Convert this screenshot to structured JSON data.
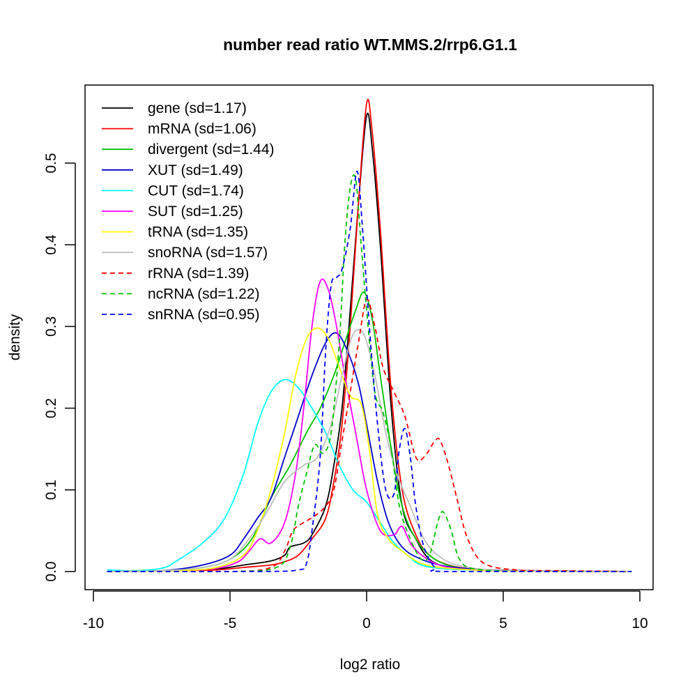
{
  "chart_data": {
    "type": "line",
    "title": "number read ratio WT.MMS.2/rrp6.G1.1",
    "xlabel": "log2 ratio",
    "ylabel": "density",
    "xlim": [
      -10,
      10
    ],
    "ylim": [
      0,
      0.57
    ],
    "x_ticks": [
      -10,
      -5,
      0,
      5,
      10
    ],
    "x_tick_labels": [
      "-10",
      "-5",
      "0",
      "5",
      "10"
    ],
    "y_ticks": [
      0.0,
      0.1,
      0.2,
      0.3,
      0.4,
      0.5
    ],
    "y_tick_labels": [
      "0.0",
      "0.1",
      "0.2",
      "0.3",
      "0.4",
      "0.5"
    ],
    "legend_position": "top-left",
    "series": [
      {
        "name": "gene",
        "label": "gene (sd=1.17)",
        "color": "#000000",
        "dash": "solid",
        "points": [
          [
            -9.5,
            0
          ],
          [
            -7,
            0.001
          ],
          [
            -5.5,
            0.003
          ],
          [
            -4.5,
            0.008
          ],
          [
            -3.5,
            0.013
          ],
          [
            -3,
            0.02
          ],
          [
            -2.8,
            0.03
          ],
          [
            -2.3,
            0.035
          ],
          [
            -2,
            0.045
          ],
          [
            -1.5,
            0.08
          ],
          [
            -1.2,
            0.13
          ],
          [
            -0.9,
            0.2
          ],
          [
            -0.6,
            0.32
          ],
          [
            -0.3,
            0.45
          ],
          [
            0,
            0.558
          ],
          [
            0.2,
            0.52
          ],
          [
            0.5,
            0.4
          ],
          [
            0.9,
            0.2
          ],
          [
            1.3,
            0.08
          ],
          [
            1.8,
            0.04
          ],
          [
            2.3,
            0.015
          ],
          [
            3,
            0.005
          ],
          [
            4,
            0.002
          ],
          [
            6,
            0.001
          ],
          [
            9.7,
            0
          ]
        ]
      },
      {
        "name": "mRNA",
        "label": "mRNA (sd=1.06)",
        "color": "#ff0000",
        "dash": "solid",
        "points": [
          [
            -9.5,
            0
          ],
          [
            -7,
            0.001
          ],
          [
            -5.5,
            0.002
          ],
          [
            -4.5,
            0.005
          ],
          [
            -3.5,
            0.008
          ],
          [
            -3,
            0.012
          ],
          [
            -2.5,
            0.02
          ],
          [
            -2,
            0.04
          ],
          [
            -1.5,
            0.065
          ],
          [
            -1.2,
            0.11
          ],
          [
            -0.9,
            0.18
          ],
          [
            -0.6,
            0.3
          ],
          [
            -0.3,
            0.45
          ],
          [
            0,
            0.573
          ],
          [
            0.2,
            0.54
          ],
          [
            0.5,
            0.42
          ],
          [
            0.9,
            0.22
          ],
          [
            1.3,
            0.1
          ],
          [
            1.8,
            0.045
          ],
          [
            2.3,
            0.02
          ],
          [
            3,
            0.008
          ],
          [
            4,
            0.003
          ],
          [
            6,
            0.001
          ],
          [
            9.7,
            0
          ]
        ]
      },
      {
        "name": "divergent",
        "label": "divergent (sd=1.44)",
        "color": "#00bf00",
        "dash": "solid",
        "points": [
          [
            -9.5,
            0
          ],
          [
            -7.5,
            0.001
          ],
          [
            -6,
            0.005
          ],
          [
            -5,
            0.015
          ],
          [
            -4.2,
            0.04
          ],
          [
            -3.5,
            0.09
          ],
          [
            -2.8,
            0.13
          ],
          [
            -2.2,
            0.17
          ],
          [
            -1.7,
            0.2
          ],
          [
            -1.2,
            0.24
          ],
          [
            -0.8,
            0.28
          ],
          [
            -0.4,
            0.32
          ],
          [
            -0.1,
            0.342
          ],
          [
            0.2,
            0.31
          ],
          [
            0.5,
            0.24
          ],
          [
            0.9,
            0.15
          ],
          [
            1.3,
            0.08
          ],
          [
            1.8,
            0.04
          ],
          [
            2.5,
            0.015
          ],
          [
            3.5,
            0.004
          ],
          [
            5,
            0.001
          ],
          [
            9.7,
            0
          ]
        ]
      },
      {
        "name": "XUT",
        "label": "XUT (sd=1.49)",
        "color": "#0000cc",
        "dash": "solid",
        "points": [
          [
            -9.5,
            0
          ],
          [
            -7.5,
            0.001
          ],
          [
            -6,
            0.008
          ],
          [
            -5,
            0.02
          ],
          [
            -4.5,
            0.04
          ],
          [
            -4,
            0.065
          ],
          [
            -3.5,
            0.09
          ],
          [
            -3,
            0.14
          ],
          [
            -2.5,
            0.19
          ],
          [
            -2,
            0.24
          ],
          [
            -1.5,
            0.28
          ],
          [
            -1.1,
            0.292
          ],
          [
            -0.7,
            0.27
          ],
          [
            -0.3,
            0.23
          ],
          [
            0,
            0.18
          ],
          [
            0.4,
            0.11
          ],
          [
            0.8,
            0.06
          ],
          [
            1.3,
            0.03
          ],
          [
            2,
            0.015
          ],
          [
            3,
            0.006
          ],
          [
            4.5,
            0.002
          ],
          [
            6,
            0.001
          ],
          [
            9.7,
            0
          ]
        ]
      },
      {
        "name": "CUT",
        "label": "CUT (sd=1.74)",
        "color": "#00ffff",
        "dash": "solid",
        "points": [
          [
            -9.5,
            0.002
          ],
          [
            -8.5,
            0.001
          ],
          [
            -7.5,
            0.004
          ],
          [
            -7,
            0.012
          ],
          [
            -6,
            0.035
          ],
          [
            -5.2,
            0.065
          ],
          [
            -4.5,
            0.12
          ],
          [
            -4,
            0.18
          ],
          [
            -3.5,
            0.22
          ],
          [
            -3,
            0.235
          ],
          [
            -2.5,
            0.225
          ],
          [
            -2,
            0.2
          ],
          [
            -1.5,
            0.17
          ],
          [
            -1,
            0.13
          ],
          [
            -0.5,
            0.1
          ],
          [
            0,
            0.085
          ],
          [
            0.5,
            0.06
          ],
          [
            1,
            0.035
          ],
          [
            1.5,
            0.02
          ],
          [
            2,
            0.008
          ],
          [
            3,
            0.003
          ],
          [
            5,
            0.001
          ],
          [
            9.7,
            0
          ]
        ]
      },
      {
        "name": "SUT",
        "label": "SUT (sd=1.25)",
        "color": "#ff00ff",
        "dash": "solid",
        "points": [
          [
            -9.5,
            0
          ],
          [
            -7,
            0.001
          ],
          [
            -5.5,
            0.004
          ],
          [
            -4.7,
            0.012
          ],
          [
            -4.3,
            0.025
          ],
          [
            -3.9,
            0.04
          ],
          [
            -3.5,
            0.035
          ],
          [
            -3,
            0.06
          ],
          [
            -2.6,
            0.12
          ],
          [
            -2.3,
            0.2
          ],
          [
            -2,
            0.3
          ],
          [
            -1.7,
            0.355
          ],
          [
            -1.4,
            0.345
          ],
          [
            -1.1,
            0.3
          ],
          [
            -0.8,
            0.24
          ],
          [
            -0.4,
            0.17
          ],
          [
            0,
            0.1
          ],
          [
            0.5,
            0.05
          ],
          [
            1,
            0.045
          ],
          [
            1.3,
            0.055
          ],
          [
            1.7,
            0.03
          ],
          [
            2.5,
            0.01
          ],
          [
            3.5,
            0.003
          ],
          [
            5,
            0.001
          ],
          [
            9.7,
            0
          ]
        ]
      },
      {
        "name": "tRNA",
        "label": "tRNA (sd=1.35)",
        "color": "#ffff00",
        "dash": "solid",
        "points": [
          [
            -9.5,
            0
          ],
          [
            -7,
            0.001
          ],
          [
            -5.5,
            0.005
          ],
          [
            -4.5,
            0.02
          ],
          [
            -4,
            0.05
          ],
          [
            -3.5,
            0.1
          ],
          [
            -3,
            0.17
          ],
          [
            -2.6,
            0.24
          ],
          [
            -2.2,
            0.285
          ],
          [
            -1.8,
            0.298
          ],
          [
            -1.4,
            0.285
          ],
          [
            -1,
            0.25
          ],
          [
            -0.6,
            0.215
          ],
          [
            -0.2,
            0.205
          ],
          [
            0.1,
            0.15
          ],
          [
            0.4,
            0.07
          ],
          [
            0.8,
            0.04
          ],
          [
            1.3,
            0.025
          ],
          [
            2,
            0.01
          ],
          [
            3,
            0.004
          ],
          [
            5,
            0.001
          ],
          [
            9.7,
            0
          ]
        ]
      },
      {
        "name": "snoRNA",
        "label": "snoRNA (sd=1.57)",
        "color": "#bebebe",
        "dash": "solid",
        "points": [
          [
            -9.5,
            0
          ],
          [
            -7.5,
            0.001
          ],
          [
            -6,
            0.005
          ],
          [
            -5,
            0.015
          ],
          [
            -4.3,
            0.04
          ],
          [
            -3.7,
            0.07
          ],
          [
            -3,
            0.11
          ],
          [
            -2.3,
            0.13
          ],
          [
            -1.8,
            0.14
          ],
          [
            -1.3,
            0.18
          ],
          [
            -0.9,
            0.24
          ],
          [
            -0.5,
            0.29
          ],
          [
            -0.1,
            0.29
          ],
          [
            0.3,
            0.24
          ],
          [
            0.7,
            0.17
          ],
          [
            1.1,
            0.12
          ],
          [
            1.6,
            0.08
          ],
          [
            2.1,
            0.04
          ],
          [
            2.6,
            0.02
          ],
          [
            3.3,
            0.008
          ],
          [
            4.5,
            0.002
          ],
          [
            6,
            0.001
          ],
          [
            9.7,
            0
          ]
        ]
      },
      {
        "name": "rRNA",
        "label": "rRNA (sd=1.39)",
        "color": "#ff0000",
        "dash": "dashed",
        "points": [
          [
            -9.5,
            0
          ],
          [
            -5,
            0
          ],
          [
            -3.5,
            0.005
          ],
          [
            -3,
            0.025
          ],
          [
            -2.7,
            0.05
          ],
          [
            -2.3,
            0.06
          ],
          [
            -1.9,
            0.068
          ],
          [
            -1.5,
            0.08
          ],
          [
            -1.2,
            0.1
          ],
          [
            -0.9,
            0.16
          ],
          [
            -0.6,
            0.22
          ],
          [
            -0.3,
            0.28
          ],
          [
            0,
            0.333
          ],
          [
            0.3,
            0.3
          ],
          [
            0.6,
            0.25
          ],
          [
            1,
            0.22
          ],
          [
            1.4,
            0.19
          ],
          [
            1.8,
            0.14
          ],
          [
            2.1,
            0.14
          ],
          [
            2.5,
            0.16
          ],
          [
            2.7,
            0.16
          ],
          [
            3,
            0.13
          ],
          [
            3.3,
            0.09
          ],
          [
            3.7,
            0.04
          ],
          [
            4.3,
            0.01
          ],
          [
            5.5,
            0.002
          ],
          [
            7,
            0.001
          ],
          [
            9.7,
            0
          ]
        ]
      },
      {
        "name": "ncRNA",
        "label": "ncRNA (sd=1.22)",
        "color": "#00bf00",
        "dash": "dashed",
        "points": [
          [
            -9.5,
            0
          ],
          [
            -5,
            0
          ],
          [
            -3.3,
            0.005
          ],
          [
            -2.8,
            0.03
          ],
          [
            -2.5,
            0.08
          ],
          [
            -2.2,
            0.12
          ],
          [
            -1.9,
            0.155
          ],
          [
            -1.6,
            0.145
          ],
          [
            -1.3,
            0.17
          ],
          [
            -1,
            0.28
          ],
          [
            -0.8,
            0.4
          ],
          [
            -0.6,
            0.47
          ],
          [
            -0.4,
            0.48
          ],
          [
            -0.2,
            0.4
          ],
          [
            0,
            0.32
          ],
          [
            0.3,
            0.22
          ],
          [
            0.6,
            0.195
          ],
          [
            0.9,
            0.15
          ],
          [
            1.2,
            0.08
          ],
          [
            1.6,
            0.04
          ],
          [
            2,
            0.015
          ],
          [
            2.3,
            0.02
          ],
          [
            2.6,
            0.06
          ],
          [
            2.8,
            0.073
          ],
          [
            3.1,
            0.05
          ],
          [
            3.4,
            0.015
          ],
          [
            4,
            0.003
          ],
          [
            6,
            0
          ],
          [
            9.7,
            0
          ]
        ]
      },
      {
        "name": "snRNA",
        "label": "snRNA (sd=0.95)",
        "color": "#0000ff",
        "dash": "dashed",
        "points": [
          [
            -9.5,
            0
          ],
          [
            -4,
            0
          ],
          [
            -2.5,
            0.002
          ],
          [
            -2.2,
            0.01
          ],
          [
            -2,
            0.05
          ],
          [
            -1.7,
            0.14
          ],
          [
            -1.5,
            0.27
          ],
          [
            -1.3,
            0.35
          ],
          [
            -1.1,
            0.36
          ],
          [
            -0.9,
            0.37
          ],
          [
            -0.6,
            0.42
          ],
          [
            -0.35,
            0.49
          ],
          [
            -0.15,
            0.42
          ],
          [
            0.1,
            0.3
          ],
          [
            0.4,
            0.18
          ],
          [
            0.7,
            0.1
          ],
          [
            1,
            0.095
          ],
          [
            1.2,
            0.15
          ],
          [
            1.4,
            0.175
          ],
          [
            1.6,
            0.14
          ],
          [
            1.8,
            0.08
          ],
          [
            2.1,
            0.03
          ],
          [
            2.5,
            0.005
          ],
          [
            3,
            0
          ],
          [
            9.7,
            0
          ]
        ]
      }
    ]
  }
}
